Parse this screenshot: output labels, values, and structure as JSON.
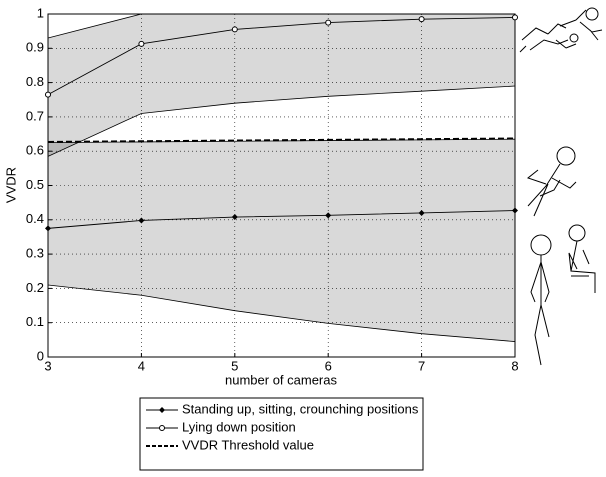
{
  "chart_data": {
    "type": "line",
    "xlabel": "number of cameras",
    "ylabel": "VVDR",
    "x": [
      3,
      4,
      5,
      6,
      7,
      8
    ],
    "xlim": [
      3,
      8
    ],
    "xticks": [
      3,
      4,
      5,
      6,
      7,
      8
    ],
    "ylim": [
      0,
      1
    ],
    "yticks": [
      0,
      0.1,
      0.2,
      0.3,
      0.4,
      0.5,
      0.6,
      0.7,
      0.8,
      0.9,
      1
    ],
    "grid": true,
    "series": [
      {
        "name": "Standing up, sitting, crounching positions",
        "color": "#000000",
        "marker": "diamond",
        "dash": "solid",
        "values": [
          0.375,
          0.398,
          0.408,
          0.413,
          0.42,
          0.427
        ]
      },
      {
        "name": "Lying down position",
        "color": "#000000",
        "marker": "circle",
        "dash": "solid",
        "values": [
          0.765,
          0.913,
          0.955,
          0.975,
          0.985,
          0.99
        ]
      },
      {
        "name": "VVDR Threshold value",
        "color": "#000000",
        "marker": "none",
        "dash": "dashed",
        "values": [
          0.627,
          0.629,
          0.631,
          0.633,
          0.635,
          0.637
        ]
      }
    ],
    "bands": [
      {
        "color": "#000000",
        "lower": [
          0.21,
          0.18,
          0.135,
          0.098,
          0.068,
          0.045
        ],
        "upper": [
          0.625,
          0.627,
          0.629,
          0.631,
          0.633,
          0.635
        ]
      },
      {
        "color": "#000000",
        "lower": [
          0.585,
          0.71,
          0.74,
          0.76,
          0.775,
          0.79
        ],
        "upper": [
          0.93,
          1,
          1,
          1,
          1,
          1
        ]
      }
    ]
  }
}
